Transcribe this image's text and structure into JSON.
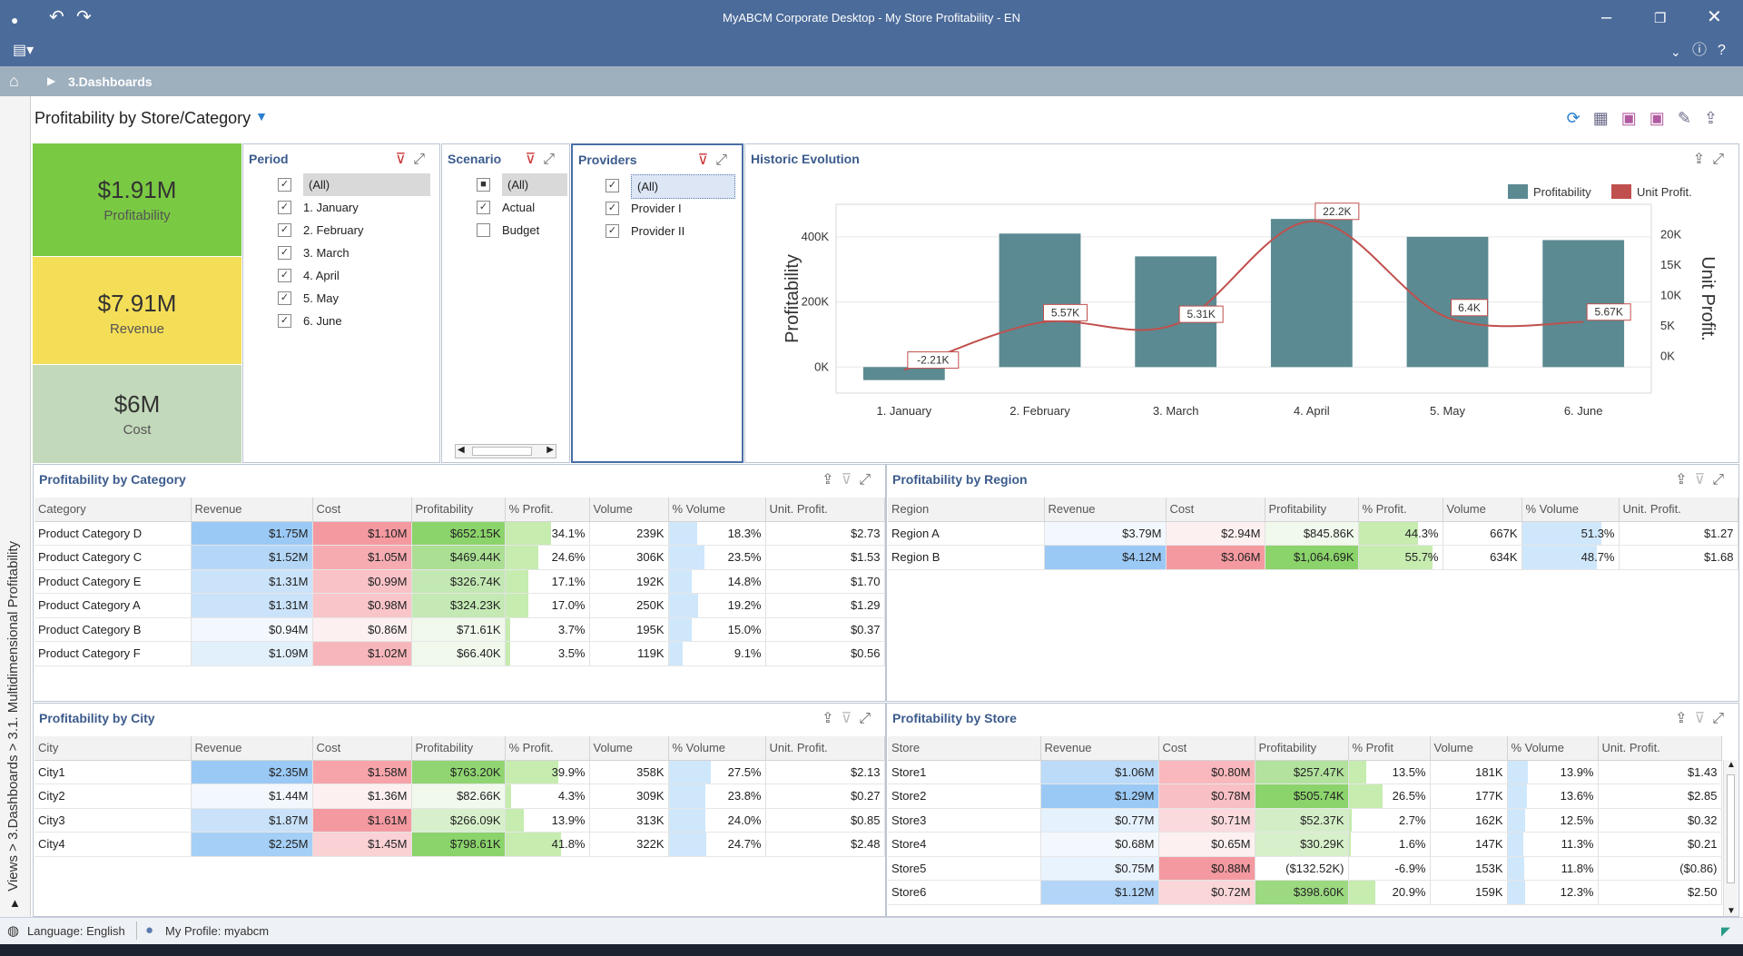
{
  "window": {
    "title": "MyABCM Corporate Desktop - My Store Profitability - EN"
  },
  "breadcrumb": {
    "current": "3.Dashboards"
  },
  "left_rail": {
    "path": "Views > 3.Dashboards > 3.1. Multidimensional Profitability"
  },
  "dashboard": {
    "title": "Profitability by Store/Category"
  },
  "kpis": [
    {
      "value": "$1.91M",
      "label": "Profitability",
      "color": "#7ac943"
    },
    {
      "value": "$7.91M",
      "label": "Revenue",
      "color": "#f5de57"
    },
    {
      "value": "$6M",
      "label": "Cost",
      "color": "#c3d9bb"
    }
  ],
  "filters": {
    "period": {
      "title": "Period",
      "items": [
        {
          "label": "(All)",
          "checked": true
        },
        {
          "label": "1. January",
          "checked": true
        },
        {
          "label": "2. February",
          "checked": true
        },
        {
          "label": "3. March",
          "checked": true
        },
        {
          "label": "4. April",
          "checked": true
        },
        {
          "label": "5. May",
          "checked": true
        },
        {
          "label": "6. June",
          "checked": true
        }
      ]
    },
    "scenario": {
      "title": "Scenario",
      "items": [
        {
          "label": "(All)",
          "checked": "partial"
        },
        {
          "label": "Actual",
          "checked": true
        },
        {
          "label": "Budget",
          "checked": false
        }
      ]
    },
    "providers": {
      "title": "Providers",
      "items": [
        {
          "label": "(All)",
          "checked": true
        },
        {
          "label": "Provider I",
          "checked": true
        },
        {
          "label": "Provider II",
          "checked": true
        }
      ]
    }
  },
  "chart_panel": {
    "title": "Historic Evolution"
  },
  "chart_data": {
    "type": "bar",
    "categories": [
      "1. January",
      "2. February",
      "3. March",
      "4. April",
      "5. May",
      "6. June"
    ],
    "series": [
      {
        "name": "Profitability",
        "kind": "bar",
        "color": "#5b8a92",
        "values": [
          -40000,
          410000,
          340000,
          455000,
          400000,
          390000
        ]
      },
      {
        "name": "Unit Profit.",
        "kind": "line",
        "color": "#c0504d",
        "values": [
          -2210,
          5570,
          5310,
          22200,
          6400,
          5670
        ],
        "labels": [
          "-2.21K",
          "5.57K",
          "5.31K",
          "22.2K",
          "6.4K",
          "5.67K"
        ]
      }
    ],
    "ylabel": "Profitability",
    "y2label": "Unit Profit.",
    "ylim": [
      -80000,
      500000
    ],
    "y2lim": [
      -6000,
      25000
    ],
    "yticks": [
      {
        "v": 0,
        "t": "0K"
      },
      {
        "v": 200000,
        "t": "200K"
      },
      {
        "v": 400000,
        "t": "400K"
      }
    ],
    "y2ticks": [
      {
        "v": 0,
        "t": "0K"
      },
      {
        "v": 5000,
        "t": "5K"
      },
      {
        "v": 10000,
        "t": "10K"
      },
      {
        "v": 15000,
        "t": "15K"
      },
      {
        "v": 20000,
        "t": "20K"
      }
    ],
    "legend": "top-right"
  },
  "tables": {
    "category": {
      "title": "Profitability by Category",
      "columns": [
        "Category",
        "Revenue",
        "Cost",
        "Profitability",
        "% Profit.",
        "Volume",
        "% Volume",
        "Unit. Profit."
      ],
      "rows": [
        [
          "Product Category D",
          "$1.75M",
          "$1.10M",
          "$652.15K",
          "34.1%",
          "239K",
          "18.3%",
          "$2.73"
        ],
        [
          "Product Category C",
          "$1.52M",
          "$1.05M",
          "$469.44K",
          "24.6%",
          "306K",
          "23.5%",
          "$1.53"
        ],
        [
          "Product Category E",
          "$1.31M",
          "$0.99M",
          "$326.74K",
          "17.1%",
          "192K",
          "14.8%",
          "$1.70"
        ],
        [
          "Product Category A",
          "$1.31M",
          "$0.98M",
          "$324.23K",
          "17.0%",
          "250K",
          "19.2%",
          "$1.29"
        ],
        [
          "Product Category B",
          "$0.94M",
          "$0.86M",
          "$71.61K",
          "3.7%",
          "195K",
          "15.0%",
          "$0.37"
        ],
        [
          "Product Category F",
          "$1.09M",
          "$1.02M",
          "$66.40K",
          "3.5%",
          "119K",
          "9.1%",
          "$0.56"
        ]
      ]
    },
    "region": {
      "title": "Profitability by Region",
      "columns": [
        "Region",
        "Revenue",
        "Cost",
        "Profitability",
        "% Profit.",
        "Volume",
        "% Volume",
        "Unit. Profit."
      ],
      "rows": [
        [
          "Region A",
          "$3.79M",
          "$2.94M",
          "$845.86K",
          "44.3%",
          "667K",
          "51.3%",
          "$1.27"
        ],
        [
          "Region B",
          "$4.12M",
          "$3.06M",
          "$1,064.69K",
          "55.7%",
          "634K",
          "48.7%",
          "$1.68"
        ]
      ]
    },
    "city": {
      "title": "Profitability by City",
      "columns": [
        "City",
        "Revenue",
        "Cost",
        "Profitability",
        "% Profit.",
        "Volume",
        "% Volume",
        "Unit. Profit."
      ],
      "rows": [
        [
          "City1",
          "$2.35M",
          "$1.58M",
          "$763.20K",
          "39.9%",
          "358K",
          "27.5%",
          "$2.13"
        ],
        [
          "City2",
          "$1.44M",
          "$1.36M",
          "$82.66K",
          "4.3%",
          "309K",
          "23.8%",
          "$0.27"
        ],
        [
          "City3",
          "$1.87M",
          "$1.61M",
          "$266.09K",
          "13.9%",
          "313K",
          "24.0%",
          "$0.85"
        ],
        [
          "City4",
          "$2.25M",
          "$1.45M",
          "$798.61K",
          "41.8%",
          "322K",
          "24.7%",
          "$2.48"
        ]
      ]
    },
    "store": {
      "title": "Profitability by Store",
      "columns": [
        "Store",
        "Revenue",
        "Cost",
        "Profitability",
        "% Profit",
        "Volume",
        "% Volume",
        "Unit. Profit."
      ],
      "rows": [
        [
          "Store1",
          "$1.06M",
          "$0.80M",
          "$257.47K",
          "13.5%",
          "181K",
          "13.9%",
          "$1.43"
        ],
        [
          "Store2",
          "$1.29M",
          "$0.78M",
          "$505.74K",
          "26.5%",
          "177K",
          "13.6%",
          "$2.85"
        ],
        [
          "Store3",
          "$0.77M",
          "$0.71M",
          "$52.37K",
          "2.7%",
          "162K",
          "12.5%",
          "$0.32"
        ],
        [
          "Store4",
          "$0.68M",
          "$0.65M",
          "$30.29K",
          "1.6%",
          "147K",
          "11.3%",
          "$0.21"
        ],
        [
          "Store5",
          "$0.75M",
          "$0.88M",
          "($132.52K)",
          "-6.9%",
          "153K",
          "11.8%",
          "($0.86)"
        ],
        [
          "Store6",
          "$1.12M",
          "$0.72M",
          "$398.60K",
          "20.9%",
          "159K",
          "12.3%",
          "$2.50"
        ]
      ]
    }
  },
  "status": {
    "language": "Language: English",
    "profile": "My Profile: myabcm"
  },
  "icons": [
    "app-logo-icon",
    "undo-icon",
    "redo-icon",
    "minimize-icon",
    "restore-icon",
    "close-icon",
    "home-icon",
    "filter-icon",
    "export-icon",
    "maximize-icon",
    "clear-filter-icon",
    "refresh-icon",
    "grid-icon",
    "save-icon",
    "save-as-icon",
    "edit-icon",
    "globe-icon",
    "user-icon"
  ]
}
